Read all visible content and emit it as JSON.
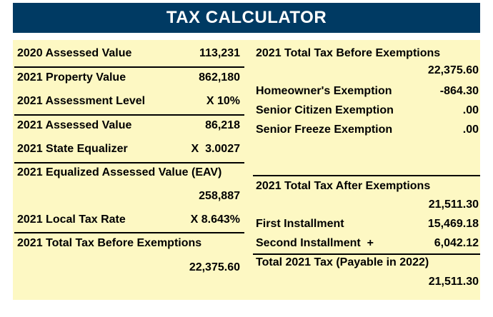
{
  "title": "TAX CALCULATOR",
  "left": {
    "assessed_2020": {
      "label": "2020 Assessed Value",
      "value": "113,231"
    },
    "property_2021": {
      "label": "2021 Property Value",
      "value": "862,180"
    },
    "assessment_level": {
      "label": "2021 Assessment Level",
      "value": "X 10%"
    },
    "assessed_2021": {
      "label": "2021 Assessed Value",
      "value": "86,218"
    },
    "state_equalizer": {
      "label": "2021 State Equalizer",
      "value": "X  3.0027"
    },
    "eav": {
      "label": "2021 Equalized Assessed Value (EAV)",
      "value": "258,887"
    },
    "local_tax_rate": {
      "label": "2021 Local Tax Rate",
      "value": "X 8.643%"
    },
    "total_before": {
      "label": "2021 Total Tax Before Exemptions",
      "value": "22,375.60"
    }
  },
  "right": {
    "total_before": {
      "label": "2021 Total Tax Before Exemptions",
      "value": "22,375.60"
    },
    "homeowner": {
      "label": "Homeowner's Exemption",
      "value": "-864.30"
    },
    "senior_citizen": {
      "label": "Senior Citizen Exemption",
      "value": ".00"
    },
    "senior_freeze": {
      "label": "Senior Freeze Exemption",
      "value": ".00"
    },
    "total_after": {
      "label": "2021 Total Tax After Exemptions",
      "value": "21,511.30"
    },
    "first_installment": {
      "label": "First Installment",
      "value": "15,469.18"
    },
    "second_installment": {
      "label": "Second Installment  +",
      "value": "6,042.12"
    },
    "total_2021": {
      "label": "Total 2021 Tax (Payable in 2022)",
      "value": "21,511.30"
    }
  }
}
